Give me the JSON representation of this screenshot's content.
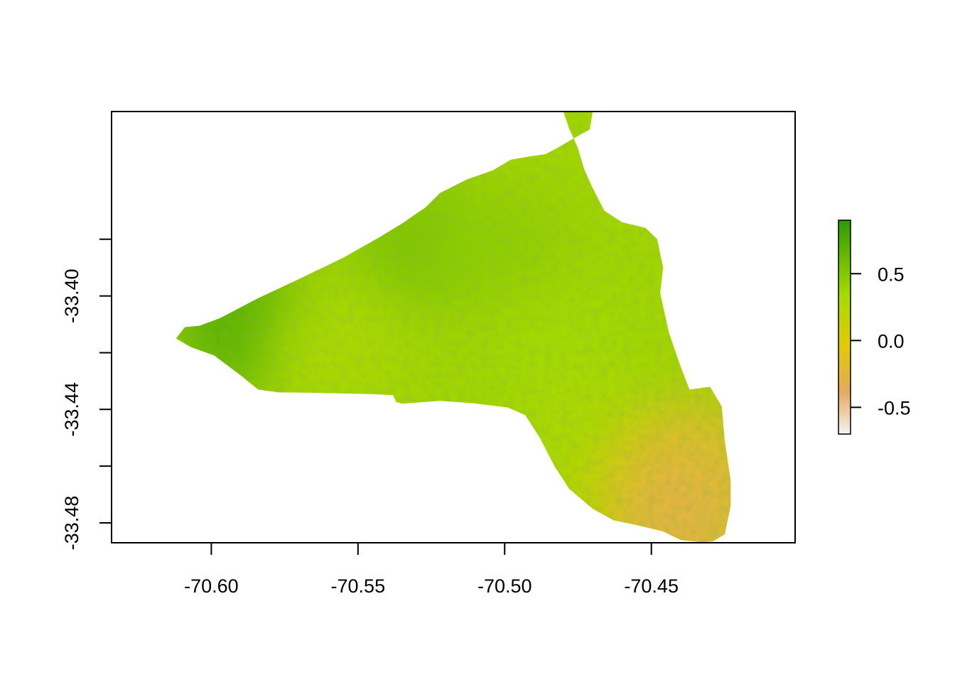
{
  "chart_data": {
    "type": "heatmap",
    "title": "",
    "xlabel": "",
    "ylabel": "",
    "xlim": [
      -70.634,
      -70.401
    ],
    "ylim": [
      -33.487,
      -33.335
    ],
    "x_ticks": [
      -70.6,
      -70.55,
      -70.5,
      -70.45
    ],
    "x_tick_labels": [
      "-70.60",
      "-70.55",
      "-70.50",
      "-70.45"
    ],
    "y_ticks_minor": [
      -33.38,
      -33.42,
      -33.46
    ],
    "y_ticks": [
      -33.4,
      -33.44,
      -33.48
    ],
    "y_tick_labels": [
      "-33.40",
      "-33.44",
      "-33.48"
    ],
    "region_outline": [
      [
        -70.611,
        -33.4136
      ],
      [
        -70.609,
        -33.411
      ],
      [
        -70.604,
        -33.4105
      ],
      [
        -70.597,
        -33.4078
      ],
      [
        -70.584,
        -33.4008
      ],
      [
        -70.57,
        -33.394
      ],
      [
        -70.555,
        -33.3865
      ],
      [
        -70.543,
        -33.3795
      ],
      [
        -70.535,
        -33.3745
      ],
      [
        -70.527,
        -33.3688
      ],
      [
        -70.522,
        -33.3637
      ],
      [
        -70.513,
        -33.359
      ],
      [
        -70.504,
        -33.3557
      ],
      [
        -70.498,
        -33.352
      ],
      [
        -70.492,
        -33.3509
      ],
      [
        -70.486,
        -33.35
      ],
      [
        -70.481,
        -33.3472
      ],
      [
        -70.476,
        -33.3442
      ],
      [
        -70.471,
        -33.3413
      ],
      [
        -70.47,
        -33.335
      ],
      [
        -70.48,
        -33.335
      ],
      [
        -70.478,
        -33.341
      ],
      [
        -70.475,
        -33.348
      ],
      [
        -70.473,
        -33.355
      ],
      [
        -70.47,
        -33.362
      ],
      [
        -70.466,
        -33.37
      ],
      [
        -70.46,
        -33.374
      ],
      [
        -70.452,
        -33.376
      ],
      [
        -70.448,
        -33.38
      ],
      [
        -70.446,
        -33.39
      ],
      [
        -70.447,
        -33.399
      ],
      [
        -70.444,
        -33.413
      ],
      [
        -70.44,
        -33.425
      ],
      [
        -70.437,
        -33.433
      ],
      [
        -70.43,
        -33.432
      ],
      [
        -70.426,
        -33.439
      ],
      [
        -70.425,
        -33.451
      ],
      [
        -70.423,
        -33.465
      ],
      [
        -70.423,
        -33.474
      ],
      [
        -70.425,
        -33.484
      ],
      [
        -70.429,
        -33.4865
      ],
      [
        -70.433,
        -33.4868
      ],
      [
        -70.44,
        -33.486
      ],
      [
        -70.446,
        -33.483
      ],
      [
        -70.454,
        -33.481
      ],
      [
        -70.463,
        -33.479
      ],
      [
        -70.47,
        -33.475
      ],
      [
        -70.478,
        -33.468
      ],
      [
        -70.483,
        -33.46
      ],
      [
        -70.488,
        -33.45
      ],
      [
        -70.493,
        -33.442
      ],
      [
        -70.499,
        -33.4393
      ],
      [
        -70.511,
        -33.4378
      ],
      [
        -70.522,
        -33.437
      ],
      [
        -70.535,
        -33.438
      ],
      [
        -70.537,
        -33.4374
      ],
      [
        -70.538,
        -33.435
      ],
      [
        -70.545,
        -33.4346
      ],
      [
        -70.566,
        -33.4341
      ],
      [
        -70.577,
        -33.434
      ],
      [
        -70.584,
        -33.433
      ],
      [
        -70.59,
        -33.428
      ],
      [
        -70.599,
        -33.421
      ],
      [
        -70.607,
        -33.418
      ],
      [
        -70.612,
        -33.415
      ]
    ],
    "sample_values": [
      {
        "x": -70.59,
        "y": -33.41,
        "v": 0.75
      },
      {
        "x": -70.53,
        "y": -33.38,
        "v": 0.55
      },
      {
        "x": -70.5,
        "y": -33.385,
        "v": 0.45
      },
      {
        "x": -70.56,
        "y": -33.42,
        "v": 0.3
      },
      {
        "x": -70.48,
        "y": -33.42,
        "v": 0.35
      },
      {
        "x": -70.47,
        "y": -33.45,
        "v": 0.3
      },
      {
        "x": -70.45,
        "y": -33.47,
        "v": 0.05
      },
      {
        "x": -70.435,
        "y": -33.46,
        "v": -0.2
      },
      {
        "x": -70.44,
        "y": -33.48,
        "v": -0.3
      }
    ],
    "legend": {
      "placement": "right",
      "range": [
        -0.7,
        0.9
      ],
      "ticks": [
        -0.5,
        0.0,
        0.5
      ],
      "tick_labels": [
        "-0.5",
        "0.0",
        "0.5"
      ],
      "colors": [
        "#F2F2F2",
        "#E6A95F",
        "#E1CC00",
        "#A6DB00",
        "#2D9A05"
      ]
    }
  }
}
